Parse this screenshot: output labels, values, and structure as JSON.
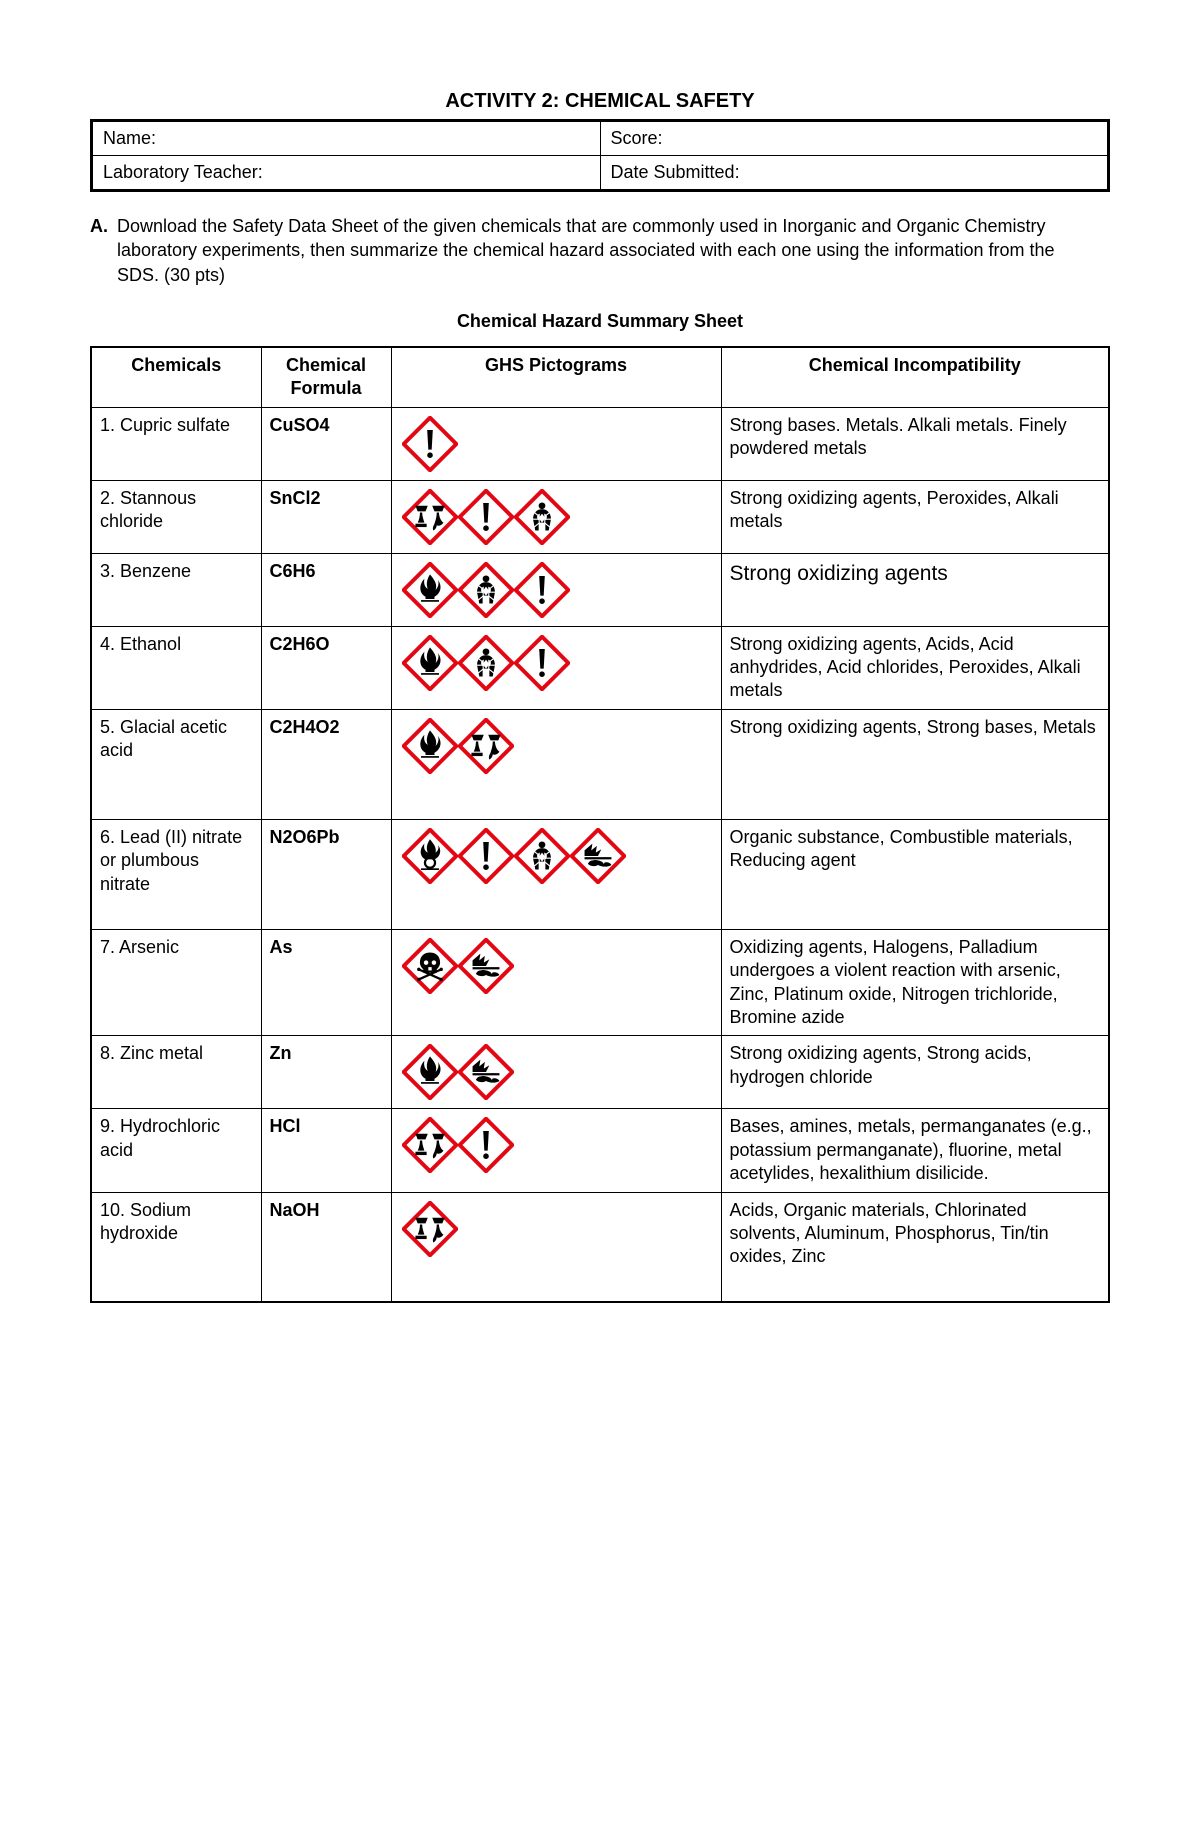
{
  "title": "ACTIVITY 2: CHEMICAL SAFETY",
  "info": {
    "name_label": "Name:",
    "score_label": "Score:",
    "teacher_label": "Laboratory Teacher:",
    "date_label": "Date Submitted:"
  },
  "section_letter": "A.",
  "instructions": "Download the Safety Data Sheet of the given chemicals that are commonly used in Inorganic and Organic Chemistry laboratory experiments, then summarize the chemical hazard associated with each one using the information from the SDS. (30 pts)",
  "subtitle": "Chemical Hazard Summary Sheet",
  "columns": [
    "Chemicals",
    "Chemical Formula",
    "GHS Pictograms",
    "Chemical Incompatibility"
  ],
  "rows": [
    {
      "chemical": "1. Cupric sulfate",
      "formula": "CuSO4",
      "pictos": [
        "exclamation"
      ],
      "incompat": "Strong bases. Metals. Alkali metals. Finely powdered metals"
    },
    {
      "chemical": "2. Stannous chloride",
      "formula": "SnCl2",
      "pictos": [
        "corrosion",
        "exclamation",
        "health"
      ],
      "incompat": "Strong oxidizing agents, Peroxides, Alkali metals"
    },
    {
      "chemical": "3. Benzene",
      "formula": "C6H6",
      "pictos": [
        "flame",
        "health",
        "exclamation"
      ],
      "incompat": "Strong oxidizing agents",
      "incompat_large": true
    },
    {
      "chemical": "4. Ethanol",
      "formula": "C2H6O",
      "pictos": [
        "flame",
        "health",
        "exclamation"
      ],
      "incompat": "Strong oxidizing agents, Acids, Acid anhydrides, Acid chlorides, Peroxides, Alkali metals"
    },
    {
      "chemical": "5. Glacial acetic acid",
      "formula": "C2H4O2",
      "pictos": [
        "flame",
        "corrosion"
      ],
      "incompat": "Strong oxidizing agents, Strong bases, Metals",
      "tall": true
    },
    {
      "chemical": "6. Lead (II) nitrate or plumbous nitrate",
      "formula": "N2O6Pb",
      "pictos": [
        "flame-circle",
        "exclamation",
        "health",
        "environment"
      ],
      "incompat": "Organic substance, Combustible materials, Reducing agent",
      "tall": true
    },
    {
      "chemical": "7. Arsenic",
      "formula": "As",
      "pictos": [
        "skull",
        "environment"
      ],
      "incompat": "Oxidizing agents, Halogens, Palladium undergoes a violent reaction with arsenic, Zinc, Platinum oxide, Nitrogen trichloride, Bromine azide"
    },
    {
      "chemical": "8. Zinc metal",
      "formula": "Zn",
      "pictos": [
        "flame",
        "environment"
      ],
      "incompat": "Strong oxidizing agents, Strong acids, hydrogen chloride"
    },
    {
      "chemical": "9. Hydrochloric acid",
      "formula": "HCl",
      "pictos": [
        "corrosion",
        "exclamation"
      ],
      "incompat": "Bases, amines, metals, permanganates (e.g., potassium permanganate), fluorine, metal acetylides, hexalithium disilicide."
    },
    {
      "chemical": "10. Sodium hydroxide",
      "formula": "NaOH",
      "pictos": [
        "corrosion"
      ],
      "incompat": "Acids, Organic materials, Chlorinated solvents, Aluminum, Phosphorus, Tin/tin oxides, Zinc",
      "tall": true
    }
  ],
  "picto_colors": {
    "border": "#e30613",
    "fill": "#ffffff",
    "symbol": "#000000"
  }
}
